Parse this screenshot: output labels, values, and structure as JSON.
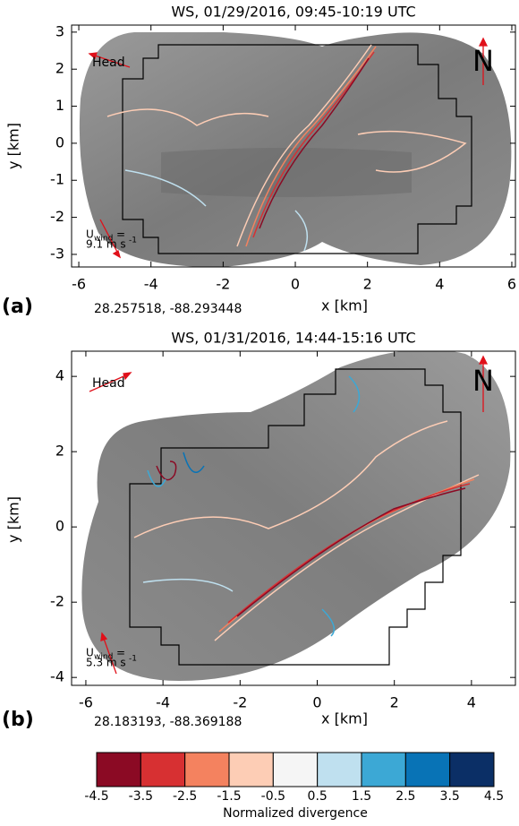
{
  "chart_data": [
    {
      "type": "image",
      "title": "WS, 01/29/2016, 09:45-10:19 UTC",
      "panel_label": "(a)",
      "coordinates": "28.257518, -88.293448",
      "xlabel": "x [km]",
      "ylabel": "y [km]",
      "xlim": [
        -6.2,
        6.1
      ],
      "ylim": [
        -3.34,
        3.19
      ],
      "xticks": [
        -6,
        -4,
        -2,
        0,
        2,
        4,
        6
      ],
      "yticks": [
        -3,
        -2,
        -1,
        0,
        1,
        2,
        3
      ],
      "head": "Head",
      "north": "N",
      "wind_symbol": "U",
      "wind_subscript": "wind",
      "wind_equals": "=",
      "wind_value": "9.1 m s",
      "wind_superscript": "-1"
    },
    {
      "type": "image",
      "title": "WS, 01/31/2016, 14:44-15:16 UTC",
      "panel_label": "(b)",
      "coordinates": "28.183193, -88.369188",
      "xlabel": "x [km]",
      "ylabel": "y [km]",
      "xlim": [
        -6.37,
        5.14
      ],
      "ylim": [
        -4.21,
        4.67
      ],
      "xticks": [
        -6,
        -4,
        -2,
        0,
        2,
        4
      ],
      "yticks": [
        -4,
        -2,
        0,
        2,
        4
      ],
      "head": "Head",
      "north": "N",
      "wind_symbol": "U",
      "wind_subscript": "wind",
      "wind_equals": "=",
      "wind_value": "5.3 m s",
      "wind_superscript": "-1"
    },
    {
      "type": "colorbar",
      "label": "Normalized divergence",
      "bins": [
        -4.5,
        -3.5,
        -2.5,
        -1.5,
        -0.5,
        0.5,
        1.5,
        2.5,
        3.5,
        4.5
      ],
      "colors": [
        "#8b0a24",
        "#d73032",
        "#f4825f",
        "#fdcdb5",
        "#f5f5f5",
        "#bfe0ef",
        "#3ca8d5",
        "#0873b6",
        "#0b2f66"
      ]
    }
  ]
}
